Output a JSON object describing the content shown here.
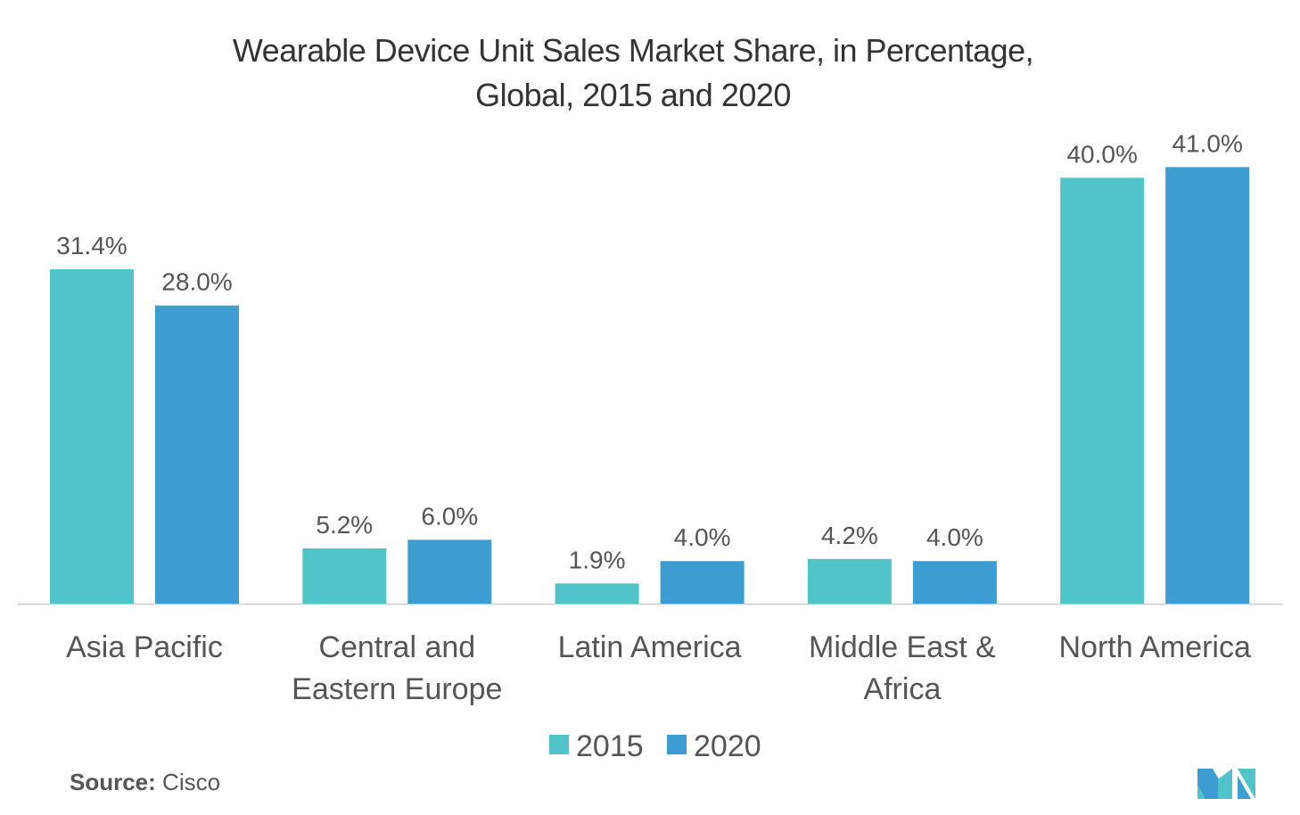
{
  "chart_data": {
    "type": "bar",
    "title": [
      "Wearable Device Unit Sales Market Share, in Percentage,",
      "Global, 2015 and 2020"
    ],
    "categories": [
      [
        "Asia Pacific"
      ],
      [
        "Central and",
        "Eastern Europe"
      ],
      [
        "Latin America"
      ],
      [
        "Middle East &",
        "Africa"
      ],
      [
        "North America"
      ]
    ],
    "series": [
      {
        "name": "2015",
        "color": "#4fc4c9",
        "values": [
          31.4,
          5.2,
          1.9,
          4.2,
          40.0
        ],
        "labels": [
          "31.4%",
          "5.2%",
          "1.9%",
          "4.2%",
          "40.0%"
        ]
      },
      {
        "name": "2020",
        "color": "#3d9dd0",
        "values": [
          28.0,
          6.0,
          4.0,
          4.0,
          41.0
        ],
        "labels": [
          "28.0%",
          "6.0%",
          "4.0%",
          "4.0%",
          "41.0%"
        ]
      }
    ],
    "legend": "bottom-center",
    "grid": false,
    "ylim": [
      0,
      41
    ]
  },
  "source": {
    "label": "Source:",
    "value": "Cisco"
  },
  "logo": {
    "name": "mordor-intelligence-logo"
  }
}
